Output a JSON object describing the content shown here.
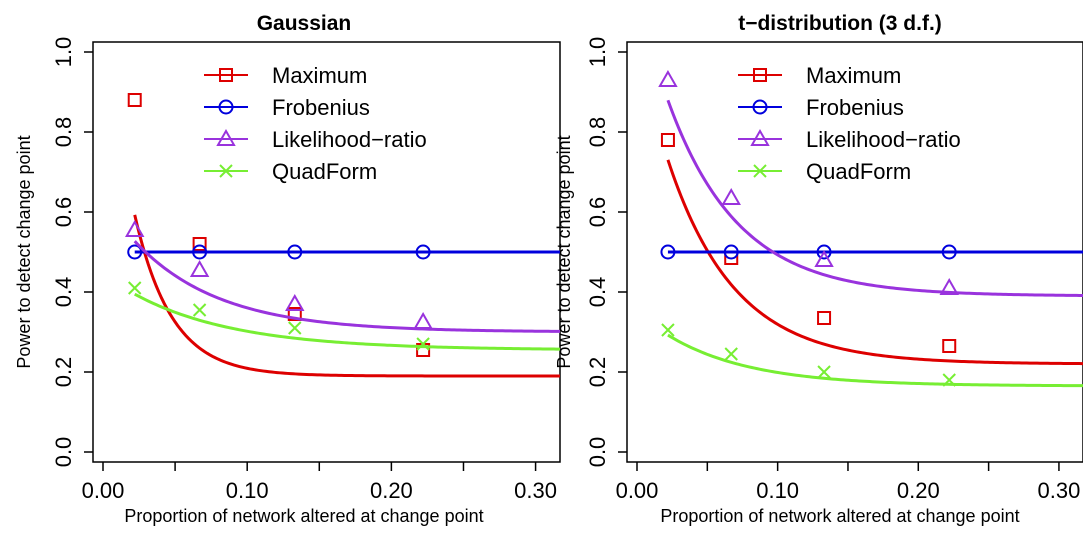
{
  "chart_data": [
    {
      "type": "line",
      "title": "Gaussian",
      "xlabel": "Proportion of network altered at change point",
      "ylabel": "Power to detect change point",
      "xlim": [
        0,
        0.31
      ],
      "ylim": [
        0,
        1
      ],
      "xticks": [
        0.0,
        0.05,
        0.1,
        0.15,
        0.2,
        0.25,
        0.3
      ],
      "xtick_labels": [
        "0.00",
        "",
        "0.10",
        "",
        "0.20",
        "",
        "0.30"
      ],
      "yticks": [
        0.0,
        0.2,
        0.4,
        0.6,
        0.8,
        1.0
      ],
      "ytick_labels": [
        "0.0",
        "0.2",
        "0.4",
        "0.6",
        "0.8",
        "1.0"
      ],
      "grid": false,
      "legend_position": "top-right",
      "series": [
        {
          "name": "Maximum",
          "color": "#dd0000",
          "marker": "square",
          "x": [
            0.022,
            0.067,
            0.133,
            0.222
          ],
          "y": [
            0.88,
            0.52,
            0.345,
            0.255
          ],
          "curve": {
            "a": 0.19,
            "b": 0.95,
            "c": 39
          }
        },
        {
          "name": "Frobenius",
          "color": "#0000dd",
          "marker": "circle",
          "x": [
            0.022,
            0.067,
            0.133,
            0.222
          ],
          "y": [
            0.5,
            0.5,
            0.5,
            0.5
          ],
          "curve": {
            "a": 0.5,
            "b": 0,
            "c": 1
          }
        },
        {
          "name": "Likelihood−ratio",
          "color": "#9933dd",
          "marker": "triangle",
          "x": [
            0.022,
            0.067,
            0.133,
            0.222
          ],
          "y": [
            0.555,
            0.455,
            0.37,
            0.325
          ],
          "curve": {
            "a": 0.3,
            "b": 0.33,
            "c": 17
          }
        },
        {
          "name": "QuadForm",
          "color": "#77ee33",
          "marker": "x",
          "x": [
            0.022,
            0.067,
            0.133,
            0.222
          ],
          "y": [
            0.41,
            0.355,
            0.31,
            0.27
          ],
          "curve": {
            "a": 0.255,
            "b": 0.19,
            "c": 14
          }
        }
      ]
    },
    {
      "type": "line",
      "title": "t−distribution (3 d.f.)",
      "xlabel": "Proportion of network altered at change point",
      "ylabel": "Power to detect change point",
      "xlim": [
        0,
        0.31
      ],
      "ylim": [
        0,
        1
      ],
      "xticks": [
        0.0,
        0.05,
        0.1,
        0.15,
        0.2,
        0.25,
        0.3
      ],
      "xtick_labels": [
        "0.00",
        "",
        "0.10",
        "",
        "0.20",
        "",
        "0.30"
      ],
      "yticks": [
        0.0,
        0.2,
        0.4,
        0.6,
        0.8,
        1.0
      ],
      "ytick_labels": [
        "0.0",
        "0.2",
        "0.4",
        "0.6",
        "0.8",
        "1.0"
      ],
      "grid": false,
      "legend_position": "top-right",
      "series": [
        {
          "name": "Maximum",
          "color": "#dd0000",
          "marker": "square",
          "x": [
            0.022,
            0.067,
            0.133,
            0.222
          ],
          "y": [
            0.78,
            0.485,
            0.335,
            0.265
          ],
          "curve": {
            "a": 0.22,
            "b": 0.81,
            "c": 21
          }
        },
        {
          "name": "Frobenius",
          "color": "#0000dd",
          "marker": "circle",
          "x": [
            0.022,
            0.067,
            0.133,
            0.222
          ],
          "y": [
            0.5,
            0.5,
            0.5,
            0.5
          ],
          "curve": {
            "a": 0.5,
            "b": 0,
            "c": 1
          }
        },
        {
          "name": "Likelihood−ratio",
          "color": "#9933dd",
          "marker": "triangle",
          "x": [
            0.022,
            0.067,
            0.133,
            0.222
          ],
          "y": [
            0.93,
            0.635,
            0.48,
            0.41
          ],
          "curve": {
            "a": 0.39,
            "b": 0.76,
            "c": 20
          }
        },
        {
          "name": "QuadForm",
          "color": "#77ee33",
          "marker": "x",
          "x": [
            0.022,
            0.067,
            0.133,
            0.222
          ],
          "y": [
            0.305,
            0.245,
            0.2,
            0.18
          ],
          "curve": {
            "a": 0.165,
            "b": 0.185,
            "c": 17
          }
        }
      ]
    }
  ]
}
